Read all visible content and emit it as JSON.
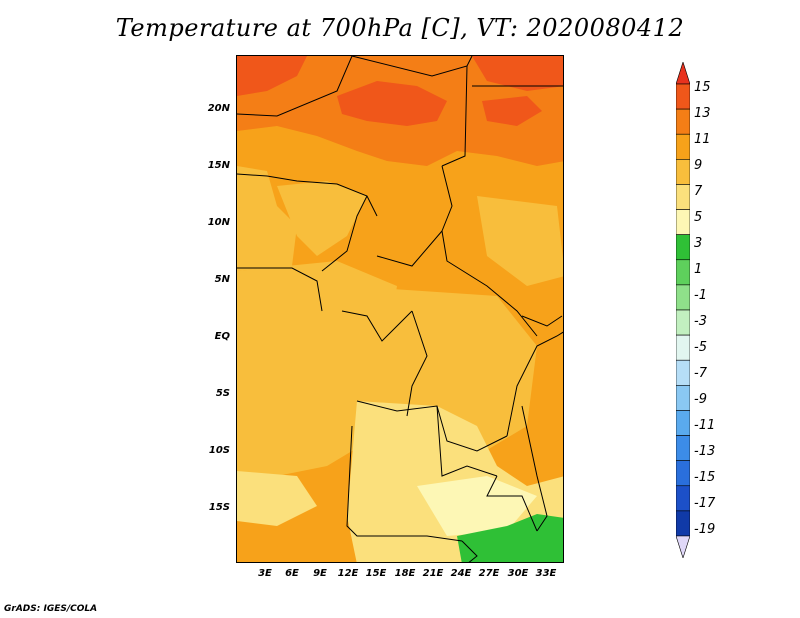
{
  "title": "Temperature at 700hPa [C], VT: 2020080412",
  "credit": "GrADS: IGES/COLA",
  "axes": {
    "lat_labels": [
      "20N",
      "15N",
      "10N",
      "5N",
      "EQ",
      "5S",
      "10S",
      "15S"
    ],
    "lon_labels": [
      "3E",
      "6E",
      "9E",
      "12E",
      "15E",
      "18E",
      "21E",
      "24E",
      "27E",
      "30E",
      "33E"
    ]
  },
  "colorbar": {
    "levels": [
      "15",
      "13",
      "11",
      "9",
      "7",
      "5",
      "3",
      "1",
      "-1",
      "-3",
      "-5",
      "-7",
      "-9",
      "-11",
      "-13",
      "-15",
      "-17",
      "-19"
    ],
    "colors": [
      "#e8321e",
      "#f0571a",
      "#f47e16",
      "#f7a21a",
      "#f8be3c",
      "#fbe07c",
      "#fdf7b5",
      "#2fc036",
      "#5ed05c",
      "#8fe08a",
      "#c2f0c0",
      "#e2f6f0",
      "#b6def7",
      "#8ac8f3",
      "#5aaaee",
      "#3c8ce8",
      "#2a6fdc",
      "#1c50c8",
      "#103aa8",
      "#0a1e82"
    ],
    "top_color": "#e8321e",
    "bottom_color": "#e0d8f8"
  }
}
